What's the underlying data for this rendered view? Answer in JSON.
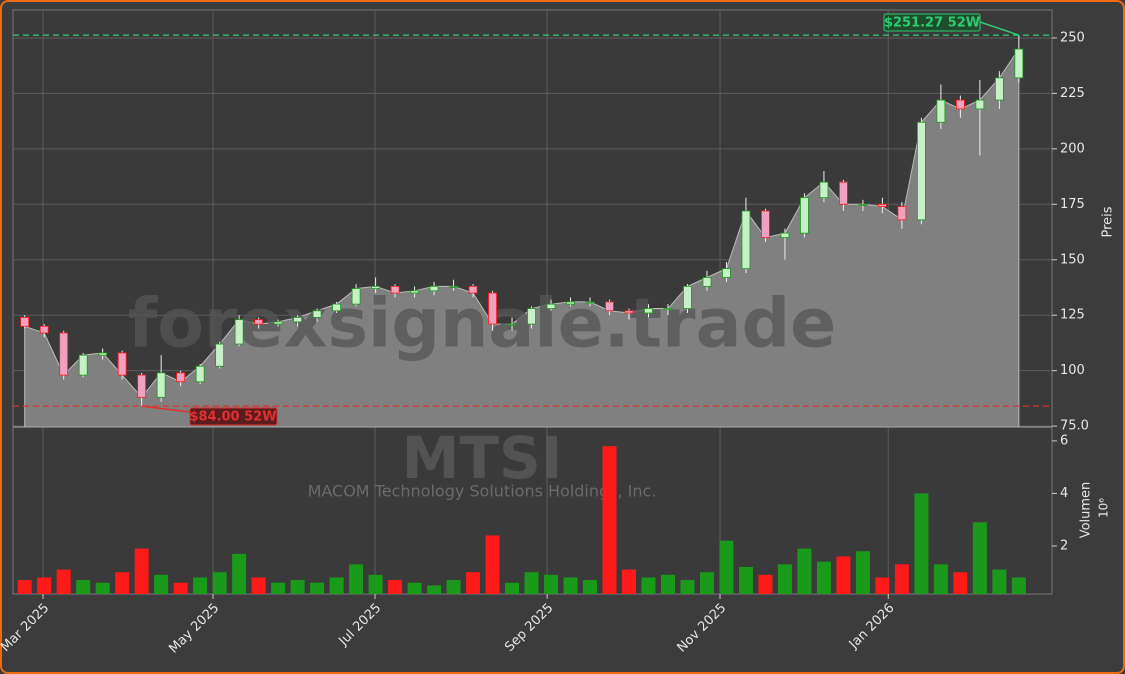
{
  "chart_data": {
    "type": "candlestick",
    "watermark": "forexsignale.trade",
    "symbol": "MTSI",
    "company": "MACOM Technology Solutions Holdings, Inc.",
    "ylabel": "Preis",
    "volume_label": "Volumen",
    "volume_unit": "10⁶",
    "categories": [
      null,
      null,
      null,
      null,
      null,
      null,
      null,
      null,
      null,
      null,
      null,
      null,
      null,
      null,
      null,
      null,
      null,
      null,
      null,
      null,
      null,
      null,
      null,
      null,
      null,
      null,
      null,
      null,
      null,
      null,
      null,
      null,
      null,
      null,
      null,
      null,
      null,
      null,
      null,
      null,
      null,
      null,
      null,
      null,
      null,
      null,
      null,
      null,
      null,
      null,
      null,
      null
    ],
    "open": [
      124,
      120,
      117,
      98,
      107,
      108,
      98,
      88,
      99,
      95,
      102,
      112,
      123,
      121,
      122,
      124,
      127,
      130,
      137,
      138,
      135,
      136,
      138,
      138,
      135,
      121,
      121,
      128,
      130,
      131,
      131,
      127,
      126,
      128,
      128,
      138,
      142,
      146,
      172,
      160,
      162,
      178,
      185,
      175,
      175,
      174,
      168,
      212,
      222,
      218,
      222,
      232
    ],
    "high": [
      125,
      121,
      118,
      108,
      110,
      109,
      99,
      107,
      100,
      103,
      113,
      125,
      124,
      123,
      125,
      128,
      131,
      139,
      142,
      139,
      138,
      140,
      141,
      139,
      136,
      124,
      129,
      132,
      133,
      133,
      132,
      128,
      130,
      130,
      139,
      145,
      149,
      178,
      173,
      164,
      180,
      190,
      186,
      177,
      178,
      176,
      214,
      229,
      224,
      231,
      235,
      251.27
    ],
    "low": [
      119,
      115,
      96,
      97,
      105,
      96,
      84,
      86,
      93,
      94,
      101,
      111,
      119,
      120,
      120,
      122,
      126,
      129,
      135,
      133,
      133,
      134,
      136,
      133,
      118,
      118,
      119,
      127,
      129,
      129,
      125,
      123,
      124,
      125,
      126,
      136,
      140,
      144,
      158,
      150,
      160,
      176,
      172,
      172,
      171,
      164,
      166,
      209,
      214,
      197,
      218,
      230
    ],
    "close": [
      120,
      117,
      98,
      107,
      108,
      98,
      88,
      99,
      95,
      102,
      112,
      123,
      121,
      122,
      124,
      127,
      130,
      137,
      138,
      135,
      136,
      138,
      138,
      135,
      121,
      121,
      128,
      130,
      131,
      131,
      127,
      126,
      128,
      128,
      138,
      142,
      146,
      172,
      160,
      162,
      178,
      185,
      175,
      175,
      174,
      168,
      212,
      222,
      218,
      222,
      232,
      245
    ],
    "volume": [
      0.7,
      0.8,
      1.1,
      0.7,
      0.6,
      1.0,
      1.9,
      0.9,
      0.6,
      0.8,
      1.0,
      1.7,
      0.8,
      0.6,
      0.7,
      0.6,
      0.8,
      1.3,
      0.9,
      0.7,
      0.6,
      0.5,
      0.7,
      1.0,
      2.4,
      0.6,
      1.0,
      0.9,
      0.8,
      0.7,
      5.8,
      1.1,
      0.8,
      0.9,
      0.7,
      1.0,
      2.2,
      1.2,
      0.9,
      1.3,
      1.9,
      1.4,
      1.6,
      1.8,
      0.8,
      1.3,
      4.0,
      1.3,
      1.0,
      2.9,
      1.1,
      0.8
    ],
    "up_color": "#1a9a1a",
    "down_color": "#ff1a1a",
    "area_color": "#808080",
    "high_52w": {
      "value": 251.27,
      "label": "$251.27 52W",
      "color": "#2ecc71"
    },
    "low_52w": {
      "value": 84.0,
      "label": "$84.00 52W",
      "color": "#e03030"
    },
    "xlim": [
      -0.6,
      52.7
    ],
    "xticks": [
      {
        "value": 0.94,
        "label": "Mar 2025"
      },
      {
        "value": 9.66,
        "label": "May 2025"
      },
      {
        "value": 17.97,
        "label": "Jul 2025"
      },
      {
        "value": 26.8,
        "label": "Sep 2025"
      },
      {
        "value": 35.67,
        "label": "Nov 2025"
      },
      {
        "value": 44.3,
        "label": "Jan 2026"
      }
    ],
    "ylim": [
      74.6,
      262.6
    ],
    "yticks": [
      {
        "value": 75,
        "label": "75.0"
      },
      100,
      125,
      150,
      175,
      200,
      225,
      250
    ],
    "vlim": [
      0.17,
      6.53
    ],
    "vticks": [
      2,
      4,
      6
    ],
    "grid": true
  }
}
